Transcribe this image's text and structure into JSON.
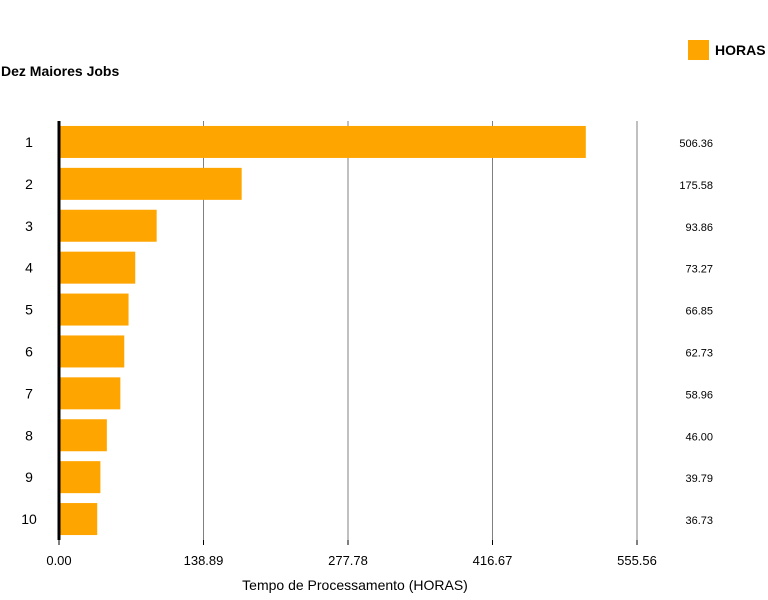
{
  "chart_data": {
    "type": "bar",
    "orientation": "horizontal",
    "title": "Dez Maiores Jobs",
    "xlabel": "Tempo de Processamento (HORAS)",
    "categories": [
      "1",
      "2",
      "3",
      "4",
      "5",
      "6",
      "7",
      "8",
      "9",
      "10"
    ],
    "series": [
      {
        "name": "HORAS",
        "values": [
          506.36,
          175.58,
          93.86,
          73.27,
          66.85,
          62.73,
          58.96,
          46.0,
          39.79,
          36.73
        ],
        "labels": [
          "506.36",
          "175.58",
          "93.86",
          "73.27",
          "66.85",
          "62.73",
          "58.96",
          "46.00",
          "39.79",
          "36.73"
        ]
      }
    ],
    "xlim": [
      0,
      555.56
    ],
    "xticks": [
      "0.00",
      "138.89",
      "277.78",
      "416.67",
      "555.56"
    ],
    "grid": true,
    "legend_position": "top-right",
    "colors": {
      "bar": "#FFA500",
      "grid": "#808080",
      "axis": "#000000"
    }
  }
}
